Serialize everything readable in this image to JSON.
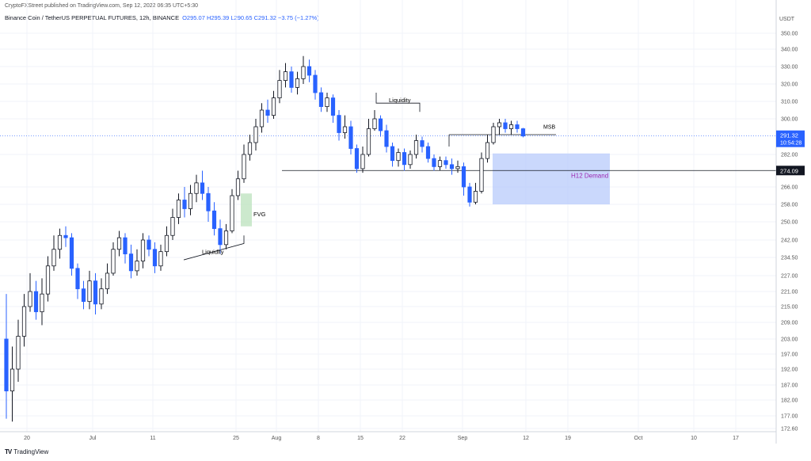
{
  "header": {
    "published": "CryptoFXStreet published on TradingView.com, Sep 12, 2022 06:35 UTC+5:30",
    "symbol": "Binance Coin / TetherUS PERPETUAL FUTURES, 12h, BINANCE",
    "ohlc": "O295.07 H295.39 L290.65 C291.32 −3.75 (−1.27%)"
  },
  "footer": {
    "logo": "TV",
    "brand": "TradingView"
  },
  "colors": {
    "up": "#131722",
    "down": "#2962ff",
    "zone": "#b3c8fb",
    "fvg": "#bfe3c0",
    "grid": "#f0f3fa"
  },
  "chart_data": {
    "type": "candlestick",
    "currency": "USDT",
    "ylim": [
      172.6,
      356
    ],
    "y_ticks": [
      "350.00",
      "340.00",
      "330.00",
      "320.00",
      "310.00",
      "300.00",
      "282.00",
      "266.00",
      "258.00",
      "250.00",
      "242.00",
      "234.50",
      "227.00",
      "221.00",
      "215.00",
      "209.00",
      "203.00",
      "197.00",
      "192.00",
      "187.00",
      "182.00",
      "177.00",
      "172.60"
    ],
    "x_ticks": [
      "20",
      "Jul",
      "11",
      "25",
      "Aug",
      "8",
      "15",
      "22",
      "Sep",
      "12",
      "19",
      "Oct",
      "10",
      "17"
    ],
    "last_price": {
      "value": "291.32",
      "countdown": "10:54:28"
    },
    "level_label": "274.09",
    "annotations": {
      "liquidity": "Liquidity",
      "fvg": "FVG",
      "msb": "MSB",
      "demand": "H12 Demand"
    },
    "candles": [
      [
        203,
        185,
        220,
        176
      ],
      [
        185,
        192,
        200,
        175
      ],
      [
        192,
        204,
        210,
        188
      ],
      [
        204,
        215,
        220,
        200
      ],
      [
        215,
        221,
        228,
        213
      ],
      [
        221,
        213,
        225,
        210
      ],
      [
        213,
        220,
        226,
        208
      ],
      [
        220,
        231,
        235,
        217
      ],
      [
        231,
        238,
        244,
        229
      ],
      [
        238,
        244,
        247,
        234
      ],
      [
        244,
        243,
        248,
        239
      ],
      [
        243,
        230,
        245,
        227
      ],
      [
        230,
        222,
        232,
        218
      ],
      [
        222,
        217,
        225,
        214
      ],
      [
        217,
        225,
        229,
        214
      ],
      [
        225,
        216,
        228,
        212
      ],
      [
        216,
        222,
        226,
        214
      ],
      [
        222,
        228,
        232,
        220
      ],
      [
        228,
        238,
        241,
        227
      ],
      [
        238,
        243,
        246,
        235
      ],
      [
        243,
        236,
        245,
        232
      ],
      [
        236,
        229,
        240,
        226
      ],
      [
        229,
        233,
        238,
        227
      ],
      [
        233,
        242,
        245,
        230
      ],
      [
        242,
        238,
        244,
        235
      ],
      [
        238,
        231,
        241,
        228
      ],
      [
        231,
        237,
        240,
        229
      ],
      [
        237,
        244,
        248,
        235
      ],
      [
        244,
        252,
        256,
        242
      ],
      [
        252,
        260,
        263,
        249
      ],
      [
        260,
        256,
        266,
        252
      ],
      [
        256,
        263,
        267,
        253
      ],
      [
        263,
        268,
        272,
        259
      ],
      [
        268,
        263,
        274,
        260
      ],
      [
        263,
        255,
        266,
        250
      ],
      [
        255,
        247,
        259,
        244
      ],
      [
        247,
        240,
        251,
        236
      ],
      [
        240,
        246,
        249,
        238
      ],
      [
        246,
        262,
        265,
        245
      ],
      [
        262,
        270,
        274,
        260
      ],
      [
        270,
        282,
        287,
        268
      ],
      [
        282,
        288,
        292,
        279
      ],
      [
        288,
        296,
        300,
        284
      ],
      [
        296,
        305,
        309,
        293
      ],
      [
        305,
        302,
        311,
        298
      ],
      [
        302,
        312,
        316,
        300
      ],
      [
        312,
        322,
        328,
        309
      ],
      [
        322,
        327,
        332,
        318
      ],
      [
        327,
        318,
        330,
        315
      ],
      [
        318,
        323,
        327,
        314
      ],
      [
        323,
        330,
        336,
        320
      ],
      [
        330,
        325,
        334,
        321
      ],
      [
        325,
        315,
        328,
        311
      ],
      [
        315,
        307,
        318,
        304
      ],
      [
        307,
        312,
        315,
        304
      ],
      [
        312,
        302,
        314,
        298
      ],
      [
        302,
        293,
        305,
        289
      ],
      [
        293,
        296,
        302,
        290
      ],
      [
        296,
        285,
        299,
        282
      ],
      [
        285,
        275,
        287,
        273
      ],
      [
        275,
        282,
        286,
        273
      ],
      [
        282,
        295,
        300,
        281
      ],
      [
        295,
        300,
        305,
        294
      ],
      [
        300,
        294,
        302,
        291
      ],
      [
        294,
        286,
        297,
        283
      ],
      [
        286,
        279,
        288,
        276
      ],
      [
        279,
        283,
        285,
        276
      ],
      [
        283,
        277,
        285,
        274
      ],
      [
        277,
        282,
        284,
        275
      ],
      [
        282,
        289,
        292,
        280
      ],
      [
        289,
        286,
        291,
        283
      ],
      [
        286,
        280,
        288,
        278
      ],
      [
        280,
        276,
        282,
        274
      ],
      [
        276,
        279,
        281,
        274
      ],
      [
        279,
        277,
        281,
        275
      ],
      [
        277,
        275,
        280,
        272
      ],
      [
        275,
        276,
        279,
        273
      ],
      [
        276,
        266,
        278,
        262
      ],
      [
        266,
        259,
        268,
        257
      ],
      [
        259,
        264,
        268,
        258
      ],
      [
        264,
        280,
        283,
        263
      ],
      [
        280,
        288,
        292,
        278
      ],
      [
        288,
        296,
        298,
        287
      ],
      [
        296,
        298,
        300,
        292
      ],
      [
        298,
        295,
        300,
        293
      ],
      [
        295,
        297,
        299,
        292
      ],
      [
        297,
        295,
        299,
        293
      ],
      [
        295,
        291.32,
        295.39,
        290.65
      ]
    ]
  }
}
